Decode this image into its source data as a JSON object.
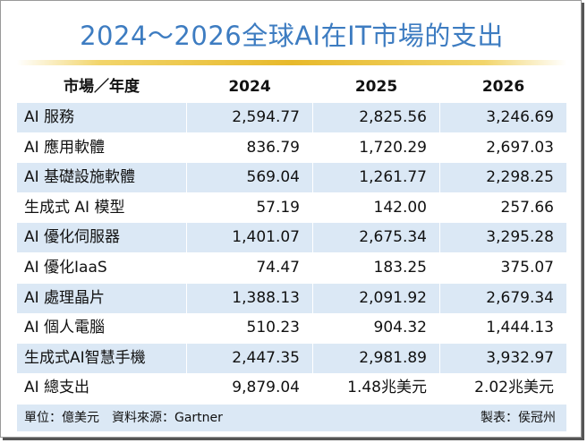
{
  "header": {
    "title": "2024～2026全球AI在IT市場的支出"
  },
  "table": {
    "columns": [
      "市場／年度",
      "2024",
      "2025",
      "2026"
    ],
    "rows": [
      [
        "AI 服務",
        "2,594.77",
        "2,825.56",
        "3,246.69"
      ],
      [
        "AI 應用軟體",
        "836.79",
        "1,720.29",
        "2,697.03"
      ],
      [
        "AI 基礎設施軟體",
        "569.04",
        "1,261.77",
        "2,298.25"
      ],
      [
        "生成式 AI 模型",
        "57.19",
        "142.00",
        "257.66"
      ],
      [
        "AI 優化伺服器",
        "1,401.07",
        "2,675.34",
        "3,295.28"
      ],
      [
        "AI 優化IaaS",
        "74.47",
        "183.25",
        "375.07"
      ],
      [
        "AI 處理晶片",
        "1,388.13",
        "2,091.92",
        "2,679.34"
      ],
      [
        "AI 個人電腦",
        "510.23",
        "904.32",
        "1,444.13"
      ],
      [
        "生成式AI智慧手機",
        "2,447.35",
        "2,981.89",
        "3,932.97"
      ],
      [
        "AI 總支出",
        "9,879.04",
        "1.48兆美元",
        "2.02兆美元"
      ]
    ]
  },
  "footer": {
    "source": "單位：億美元　資料來源：Gartner",
    "credit": "製表：侯冠州"
  }
}
